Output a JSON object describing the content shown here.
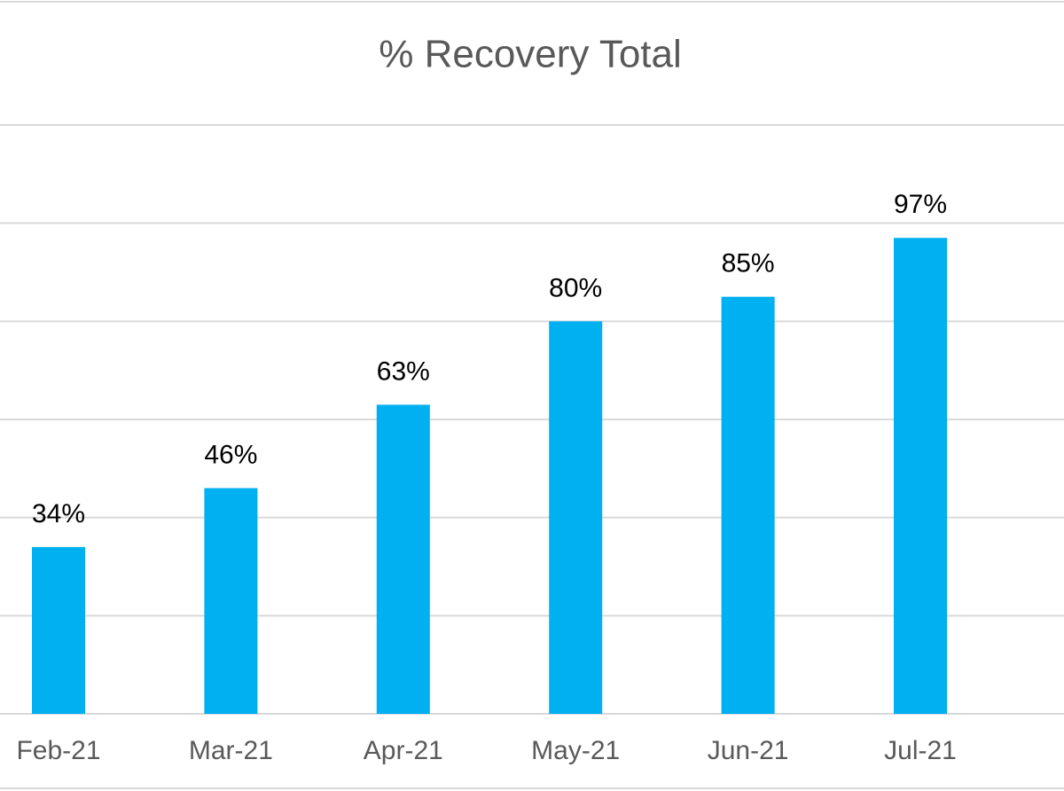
{
  "chart_data": {
    "type": "bar",
    "title": "% Recovery Total",
    "categories": [
      "Feb-21",
      "Mar-21",
      "Apr-21",
      "May-21",
      "Jun-21",
      "Jul-21"
    ],
    "values": [
      34,
      46,
      63,
      80,
      85,
      97
    ],
    "value_labels": [
      "34%",
      "46%",
      "63%",
      "80%",
      "85%",
      "97%"
    ],
    "color": "#00b0f0",
    "ylim": [
      0,
      120
    ],
    "yticks": [
      0,
      20,
      40,
      60,
      80,
      100,
      120
    ],
    "grid": true
  }
}
